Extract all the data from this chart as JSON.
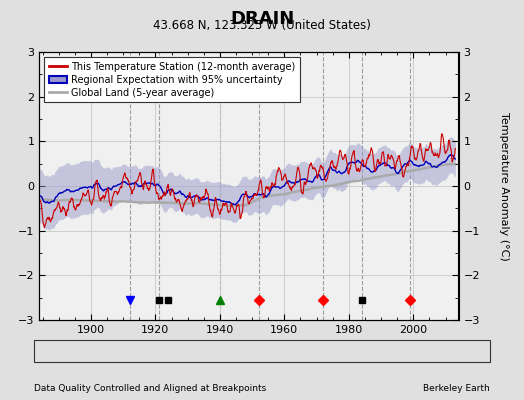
{
  "title": "DRAIN",
  "subtitle": "43.668 N, 123.325 W (United States)",
  "ylabel": "Temperature Anomaly (°C)",
  "xlabel_left": "Data Quality Controlled and Aligned at Breakpoints",
  "xlabel_right": "Berkeley Earth",
  "ylim": [
    -3,
    3
  ],
  "xlim": [
    1884,
    2014
  ],
  "yticks": [
    -3,
    -2,
    -1,
    0,
    1,
    2,
    3
  ],
  "xticks": [
    1900,
    1920,
    1940,
    1960,
    1980,
    2000
  ],
  "grid_color": "#c8c8c8",
  "bg_color": "#e0e0e0",
  "plot_bg_color": "#f0f0f0",
  "station_line_color": "#cc0000",
  "regional_line_color": "#0000bb",
  "regional_fill_color": "#9999cc",
  "global_line_color": "#aaaaaa",
  "legend_labels": [
    "This Temperature Station (12-month average)",
    "Regional Expectation with 95% uncertainty",
    "Global Land (5-year average)"
  ],
  "station_move_years": [
    1952,
    1972,
    1999
  ],
  "record_gap_years": [
    1940
  ],
  "obs_change_years": [
    1912
  ],
  "empirical_break_years": [
    1921,
    1924,
    1984
  ],
  "vline_years": [
    1912,
    1921,
    1940,
    1952,
    1972,
    1984,
    1999
  ],
  "vline_color": "#888888",
  "marker_y": -2.55,
  "seed": 42
}
